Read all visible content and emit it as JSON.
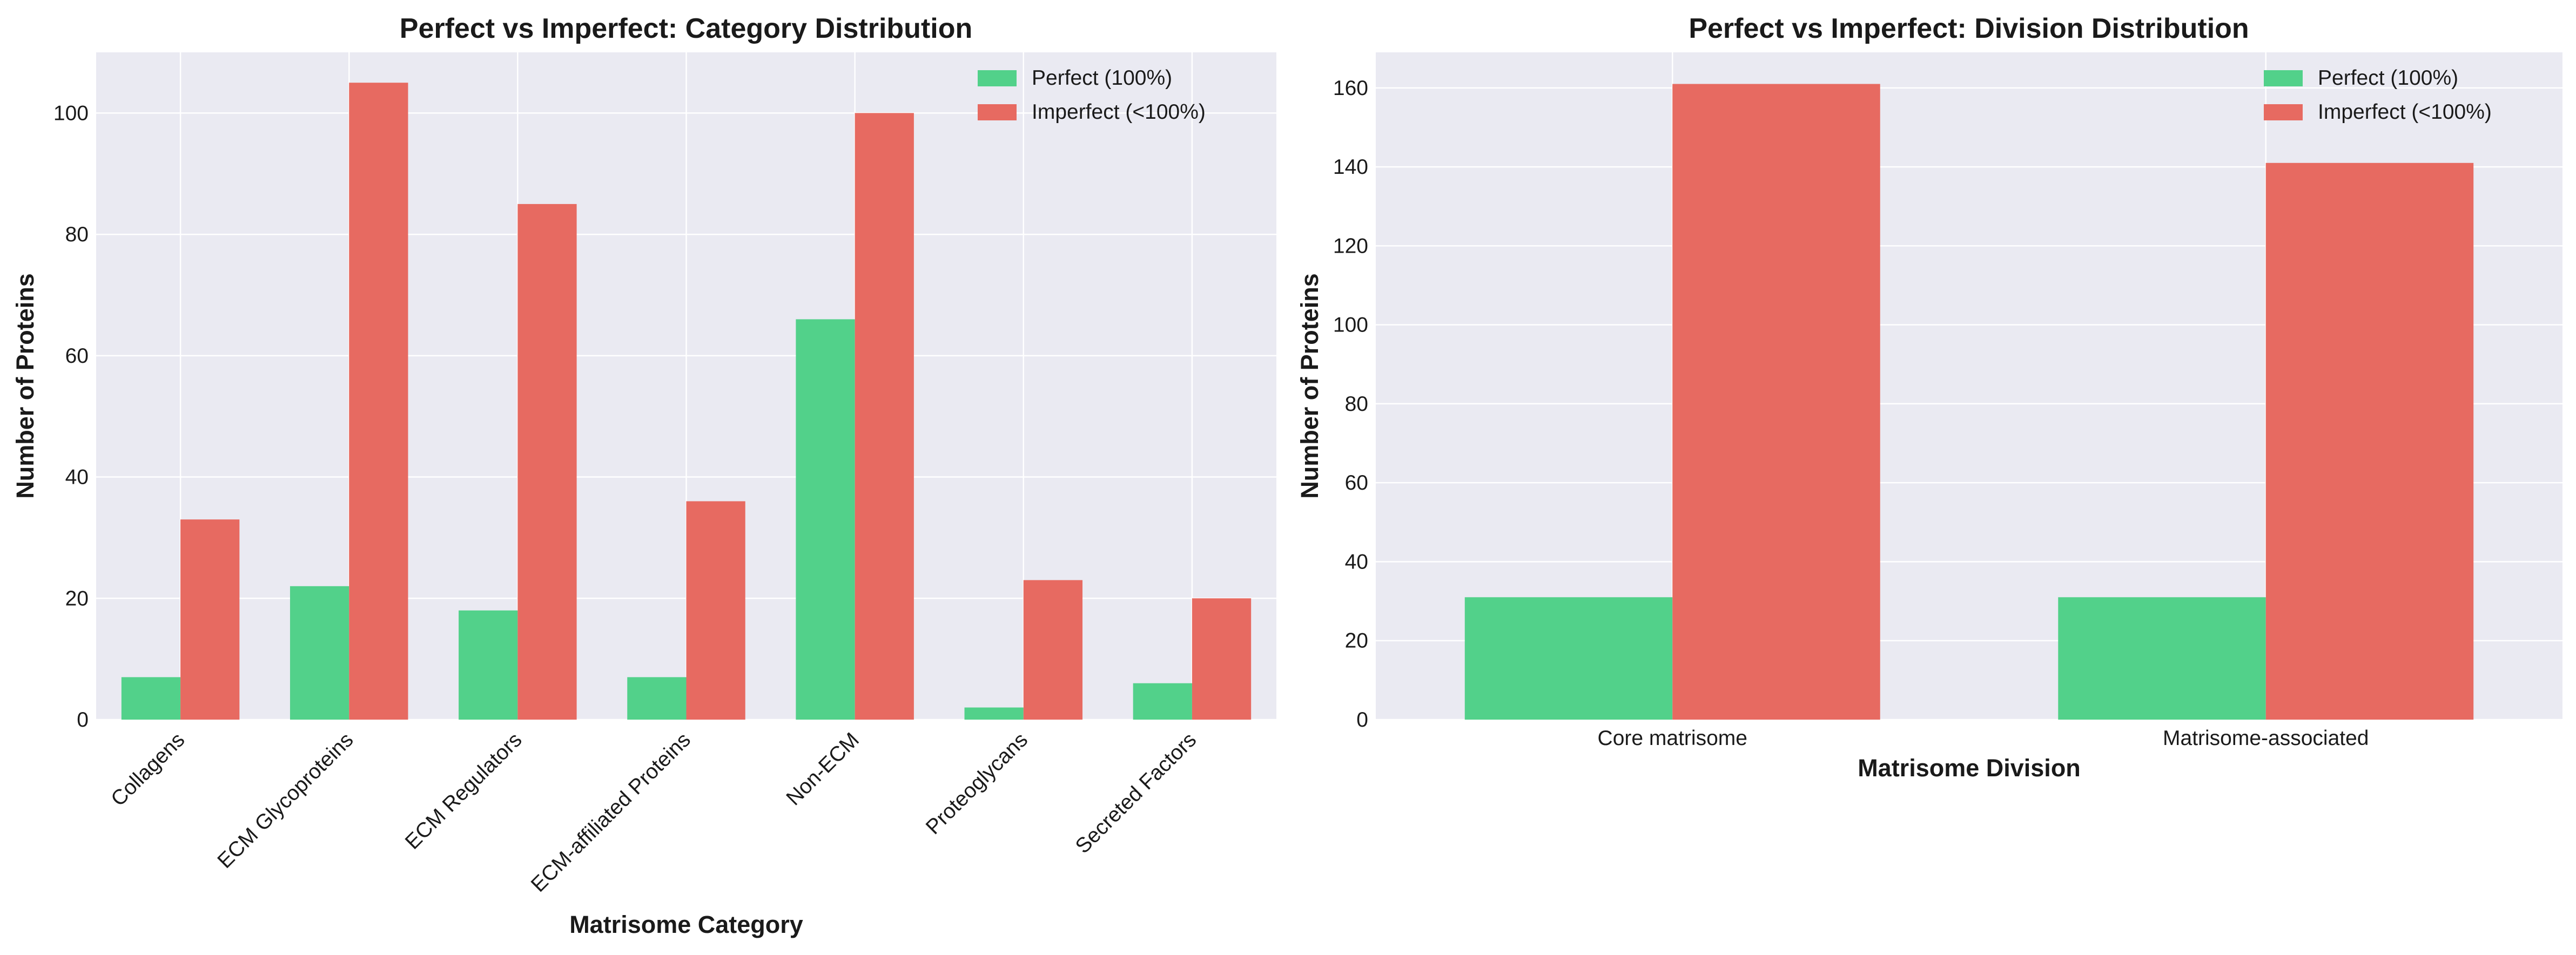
{
  "colors": {
    "perfect": "#52d18a",
    "imperfect": "#e76a61",
    "plot_bg": "#eaeaf2",
    "grid": "#ffffff"
  },
  "chart_data": [
    {
      "type": "bar",
      "title": "Perfect vs Imperfect: Category Distribution",
      "xlabel": "Matrisome Category",
      "ylabel": "Number of Proteins",
      "categories": [
        "Collagens",
        "ECM Glycoproteins",
        "ECM Regulators",
        "ECM-affiliated Proteins",
        "Non-ECM",
        "Proteoglycans",
        "Secreted Factors"
      ],
      "series": [
        {
          "name": "Perfect (100%)",
          "values": [
            7,
            22,
            18,
            7,
            66,
            2,
            6
          ]
        },
        {
          "name": "Imperfect (<100%)",
          "values": [
            33,
            105,
            85,
            36,
            100,
            23,
            20
          ]
        }
      ],
      "ylim": [
        0,
        110
      ],
      "yticks": [
        0,
        20,
        40,
        60,
        80,
        100
      ],
      "grid": true,
      "legend": "top-right",
      "rotate_xticks": true
    },
    {
      "type": "bar",
      "title": "Perfect vs Imperfect: Division Distribution",
      "xlabel": "Matrisome Division",
      "ylabel": "Number of Proteins",
      "categories": [
        "Core matrisome",
        "Matrisome-associated"
      ],
      "series": [
        {
          "name": "Perfect (100%)",
          "values": [
            31,
            31
          ]
        },
        {
          "name": "Imperfect (<100%)",
          "values": [
            161,
            141
          ]
        }
      ],
      "ylim": [
        0,
        169
      ],
      "yticks": [
        0,
        20,
        40,
        60,
        80,
        100,
        120,
        140,
        160
      ],
      "grid": true,
      "legend": "top-right",
      "rotate_xticks": false
    }
  ]
}
